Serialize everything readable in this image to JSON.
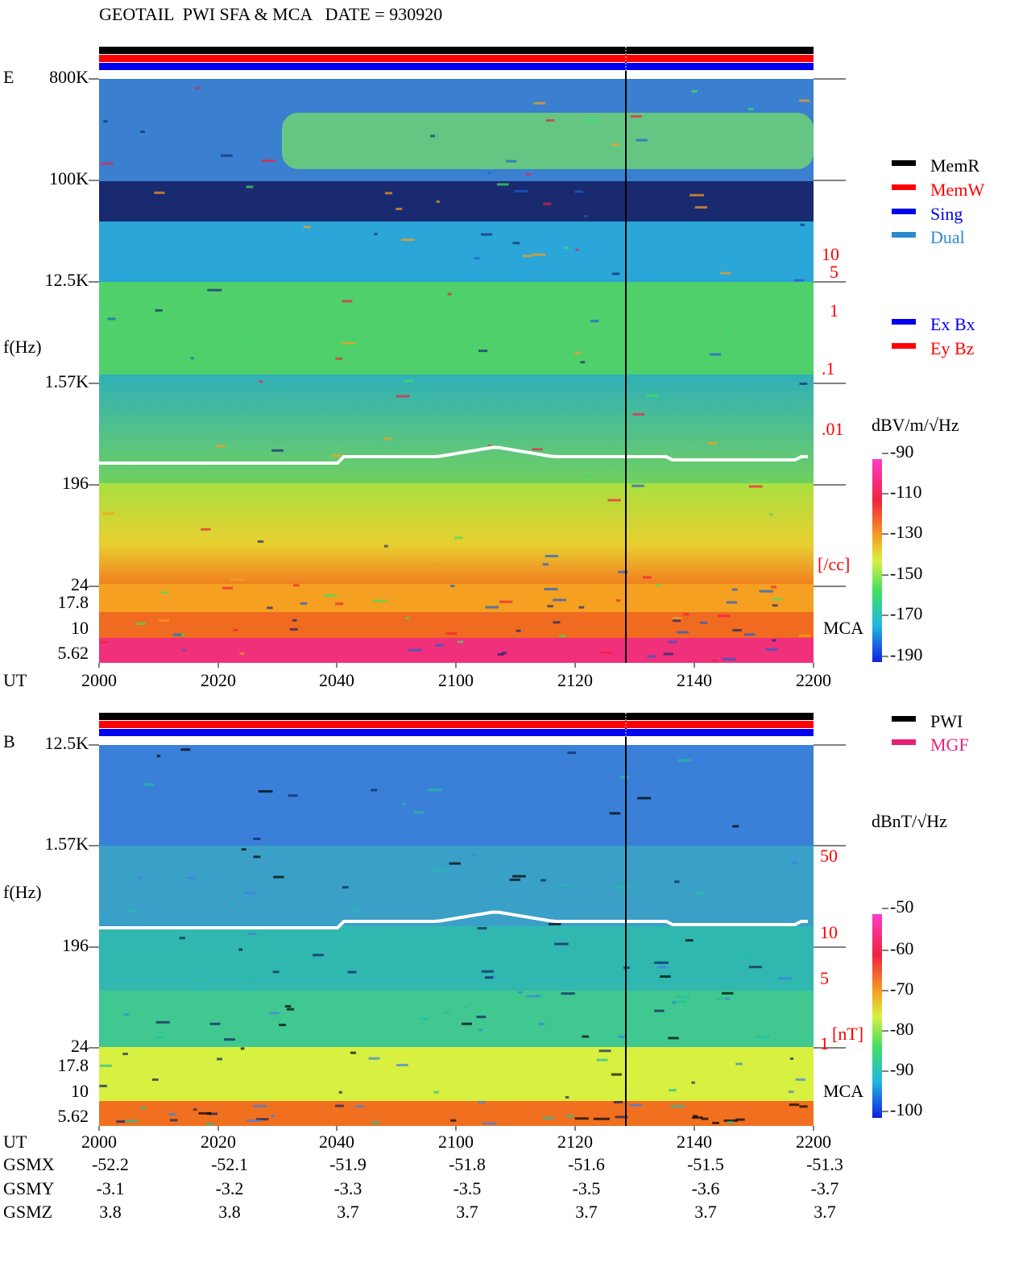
{
  "header": {
    "title": "GEOTAIL  PWI SFA & MCA   DATE = 930920"
  },
  "panels": [
    {
      "label": "E",
      "freq_labels": [
        "800K",
        "100K",
        "12.5K",
        "1.57K",
        "196",
        "24",
        "17.8",
        "10",
        "5.62"
      ],
      "freq_axis_label": "f(Hz)",
      "density_labels": [
        "10",
        "5",
        "1",
        ".1",
        ".01",
        "[/cc]"
      ],
      "legend": [
        "MemR",
        "MemW",
        "Sing",
        "Dual"
      ],
      "legend2": [
        "Ex Bx",
        "Ey Bz"
      ],
      "unit": "dBV/m/√Hz",
      "colorbar_labels": [
        "-90",
        "-110",
        "-130",
        "-150",
        "-170",
        "-190"
      ],
      "mca_label": "MCA",
      "time_label": "UT",
      "times": [
        "2000",
        "2020",
        "2040",
        "2100",
        "2120",
        "2140",
        "2200"
      ]
    },
    {
      "label": "B",
      "freq_labels": [
        "12.5K",
        "1.57K",
        "196",
        "24",
        "17.8",
        "10",
        "5.62"
      ],
      "freq_axis_label": "f(Hz)",
      "density_labels": [
        "50",
        "10",
        "5",
        "1",
        "[nT]"
      ],
      "legend": [
        "PWI",
        "MGF"
      ],
      "unit": "dBnT/√Hz",
      "colorbar_labels": [
        "-50",
        "-60",
        "-70",
        "-80",
        "-90",
        "-100"
      ],
      "mca_label": "MCA",
      "time_label": "UT",
      "times": [
        "2000",
        "2020",
        "2040",
        "2100",
        "2120",
        "2140",
        "2200"
      ]
    }
  ],
  "orbit": {
    "rows": [
      {
        "name": "GSMX",
        "values": [
          "-52.2",
          "-52.1",
          "-51.9",
          "-51.8",
          "-51.6",
          "-51.5",
          "-51.3"
        ]
      },
      {
        "name": "GSMY",
        "values": [
          "-3.1",
          "-3.2",
          "-3.3",
          "-3.5",
          "-3.5",
          "-3.6",
          "-3.7"
        ]
      },
      {
        "name": "GSMZ",
        "values": [
          "3.8",
          "3.8",
          "3.7",
          "3.7",
          "3.7",
          "3.7",
          "3.7"
        ]
      }
    ]
  }
}
